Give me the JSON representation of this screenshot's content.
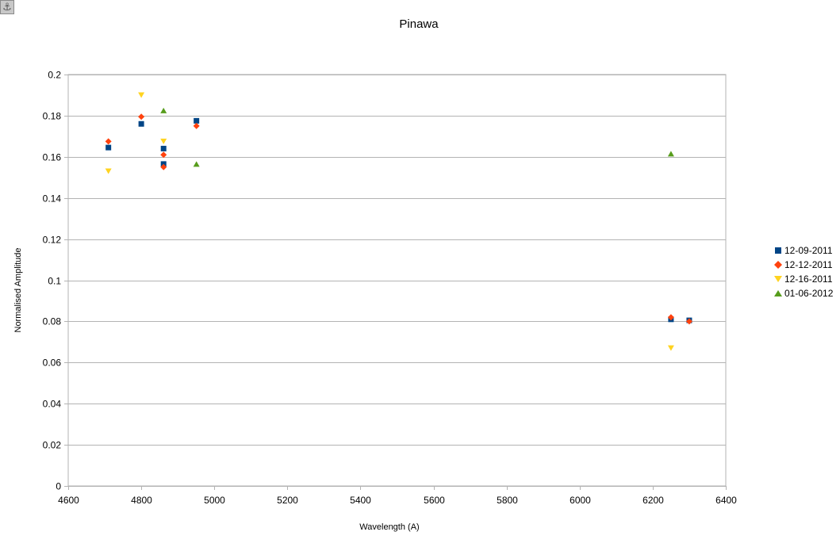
{
  "chart_data": {
    "type": "scatter",
    "title": "Pinawa",
    "xlabel": "Wavelength (A)",
    "ylabel": "Normalised Amplitude",
    "xlim": [
      4600,
      6400
    ],
    "ylim": [
      0,
      0.2
    ],
    "x_ticks": [
      "4600",
      "4800",
      "5000",
      "5200",
      "5400",
      "5600",
      "5800",
      "6000",
      "6200",
      "6400"
    ],
    "y_ticks": [
      "0",
      "0.02",
      "0.04",
      "0.06",
      "0.08",
      "0.1",
      "0.12",
      "0.14",
      "0.16",
      "0.18",
      "0.2"
    ],
    "grid": true,
    "legend_position": "right",
    "series": [
      {
        "name": "12-09-2011",
        "marker": "square",
        "color": "#004586",
        "points": [
          [
            4710,
            0.1645
          ],
          [
            4800,
            0.176
          ],
          [
            4861,
            0.164
          ],
          [
            4861,
            0.1565
          ],
          [
            4951,
            0.1775
          ],
          [
            6250,
            0.081
          ],
          [
            6300,
            0.0805
          ]
        ]
      },
      {
        "name": "12-12-2011",
        "marker": "diamond",
        "color": "#ff420e",
        "points": [
          [
            4710,
            0.1675
          ],
          [
            4800,
            0.1795
          ],
          [
            4861,
            0.161
          ],
          [
            4861,
            0.155
          ],
          [
            4951,
            0.175
          ],
          [
            6250,
            0.082
          ],
          [
            6300,
            0.08
          ]
        ]
      },
      {
        "name": "12-16-2011",
        "marker": "triangle-down",
        "color": "#ffd320",
        "points": [
          [
            4710,
            0.153
          ],
          [
            4800,
            0.19
          ],
          [
            4861,
            0.1675
          ],
          [
            6250,
            0.067
          ]
        ]
      },
      {
        "name": "01-06-2012",
        "marker": "triangle-up",
        "color": "#579d1c",
        "points": [
          [
            4861,
            0.1825
          ],
          [
            4951,
            0.1565
          ],
          [
            6250,
            0.1615
          ]
        ]
      }
    ]
  }
}
